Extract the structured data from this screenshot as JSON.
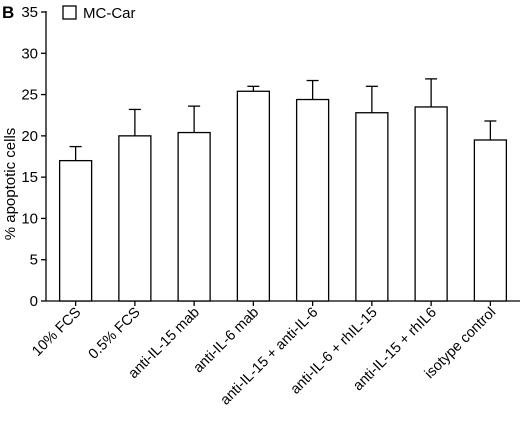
{
  "panel_label": "B",
  "chart_data": {
    "type": "bar",
    "title": "",
    "xlabel": "",
    "ylabel": "% apoptotic cells",
    "ylim": [
      0,
      35
    ],
    "yticks": [
      0,
      5,
      10,
      15,
      20,
      25,
      30,
      35
    ],
    "grid": false,
    "legend_position": "top-left",
    "categories": [
      "10% FCS",
      "0.5% FCS",
      "anti-IL-15 mab",
      "anti-IL-6 mab",
      "anti-IL-15 + anti-IL-6",
      "anti-IL-6 + rhIL-15",
      "anti-IL-15 + rhIL6",
      "isotype control"
    ],
    "series": [
      {
        "name": "MC-Car",
        "values": [
          17.0,
          20.0,
          20.4,
          25.4,
          24.4,
          22.8,
          23.5,
          19.5
        ],
        "error": [
          1.7,
          3.2,
          3.2,
          0.6,
          2.3,
          3.2,
          3.4,
          2.3
        ],
        "color": "#ffffff",
        "stroke": "#000000"
      }
    ]
  }
}
